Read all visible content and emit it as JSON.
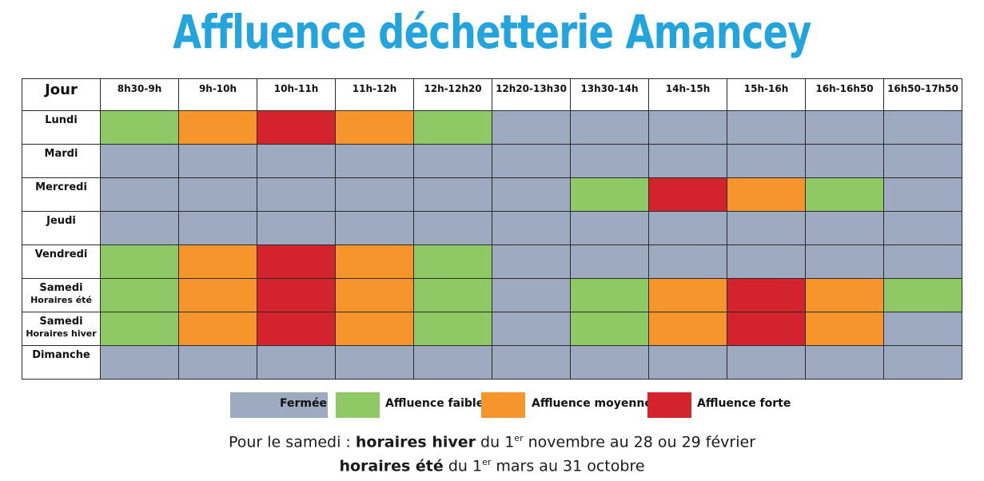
{
  "title": "Affluence déchetterie Amancey",
  "header": {
    "jour": "Jour",
    "slots": [
      "8h30-9h",
      "9h-10h",
      "10h-11h",
      "11h-12h",
      "12h-12h20",
      "12h20-13h30",
      "13h30-14h",
      "14h-15h",
      "15h-16h",
      "16h-16h50",
      "16h50-17h50"
    ]
  },
  "rows": [
    {
      "day": "Lundi",
      "sub": "",
      "cells": [
        "faible",
        "moyenne",
        "forte",
        "moyenne",
        "faible",
        "fermee",
        "fermee",
        "fermee",
        "fermee",
        "fermee",
        "fermee"
      ]
    },
    {
      "day": "Mardi",
      "sub": "",
      "cells": [
        "fermee",
        "fermee",
        "fermee",
        "fermee",
        "fermee",
        "fermee",
        "fermee",
        "fermee",
        "fermee",
        "fermee",
        "fermee"
      ]
    },
    {
      "day": "Mercredi",
      "sub": "",
      "cells": [
        "fermee",
        "fermee",
        "fermee",
        "fermee",
        "fermee",
        "fermee",
        "faible",
        "forte",
        "moyenne",
        "faible",
        "fermee"
      ]
    },
    {
      "day": "Jeudi",
      "sub": "",
      "cells": [
        "fermee",
        "fermee",
        "fermee",
        "fermee",
        "fermee",
        "fermee",
        "fermee",
        "fermee",
        "fermee",
        "fermee",
        "fermee"
      ]
    },
    {
      "day": "Vendredi",
      "sub": "",
      "cells": [
        "faible",
        "moyenne",
        "forte",
        "moyenne",
        "faible",
        "fermee",
        "fermee",
        "fermee",
        "fermee",
        "fermee",
        "fermee"
      ]
    },
    {
      "day": "Samedi",
      "sub": "Horaires été",
      "cells": [
        "faible",
        "moyenne",
        "forte",
        "moyenne",
        "faible",
        "fermee",
        "faible",
        "moyenne",
        "forte",
        "moyenne",
        "faible"
      ]
    },
    {
      "day": "Samedi",
      "sub": "Horaires hiver",
      "cells": [
        "faible",
        "moyenne",
        "forte",
        "moyenne",
        "faible",
        "fermee",
        "faible",
        "moyenne",
        "forte",
        "moyenne",
        "fermee"
      ]
    },
    {
      "day": "Dimanche",
      "sub": "",
      "cells": [
        "fermee",
        "fermee",
        "fermee",
        "fermee",
        "fermee",
        "fermee",
        "fermee",
        "fermee",
        "fermee",
        "fermee",
        "fermee"
      ]
    }
  ],
  "colors": {
    "fermee": "#9eaac0",
    "faible": "#8fc965",
    "moyenne": "#f6952c",
    "forte": "#d3232c",
    "title": "#23a4dc"
  },
  "legend": {
    "fermee": "Fermée",
    "faible": "Affluence faible",
    "moyenne": "Affluence moyenne",
    "forte": "Affluence forte"
  },
  "note": {
    "line1_prefix": "Pour le samedi : ",
    "line1_bold": "horaires hiver",
    "line1_mid": " du 1",
    "line1_sup": "er",
    "line1_suffix": " novembre au 28 ou 29 février",
    "line2_bold": "horaires été",
    "line2_mid": " du 1",
    "line2_sup": "er",
    "line2_suffix": " mars au 31 octobre"
  }
}
